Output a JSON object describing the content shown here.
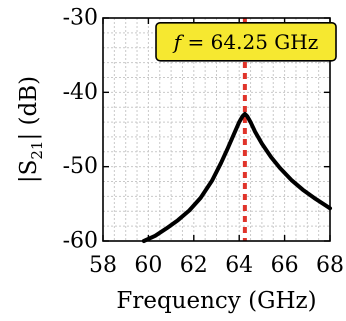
{
  "chart_data": {
    "type": "line",
    "xlabel": "Frequency (GHz)",
    "ylabel_main": "|S",
    "ylabel_sub": "21",
    "ylabel_tail": "| (dB)",
    "xlim": [
      58,
      68
    ],
    "ylim": [
      -60,
      -30
    ],
    "xticks": [
      58,
      60,
      62,
      64,
      66,
      68
    ],
    "yticks": [
      -60,
      -50,
      -40,
      -30
    ],
    "xticks_minor_step": 0.5,
    "yticks_minor_step": 2,
    "grid": true,
    "marker_line": {
      "x": 64.25,
      "color": "#e0342b",
      "style": "dashed"
    },
    "annotation": {
      "var": "f",
      "text": " = 64.25 GHz",
      "bg": "#f6e830",
      "border": "#000000",
      "x": 64.3,
      "y": -33.2
    },
    "series": [
      {
        "color": "#000000",
        "x": [
          59.8,
          60.3,
          60.8,
          61.3,
          61.8,
          62.3,
          62.8,
          63.2,
          63.5,
          63.8,
          64.0,
          64.15,
          64.25,
          64.35,
          64.5,
          64.7,
          65.0,
          65.4,
          65.8,
          66.3,
          66.8,
          67.3,
          67.8,
          68.0
        ],
        "y": [
          -60.1,
          -59.3,
          -58.3,
          -57.2,
          -55.9,
          -54.2,
          -51.9,
          -49.5,
          -47.5,
          -45.4,
          -44.0,
          -43.2,
          -42.9,
          -43.2,
          -44.0,
          -45.3,
          -46.9,
          -48.7,
          -50.2,
          -51.8,
          -53.1,
          -54.2,
          -55.2,
          -55.6
        ]
      }
    ]
  }
}
